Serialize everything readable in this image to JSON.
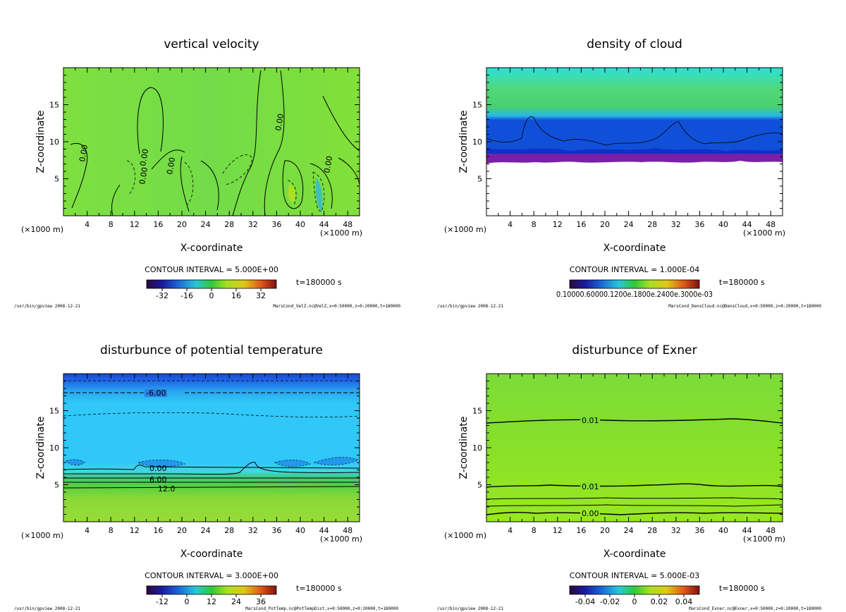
{
  "chart_data": [
    {
      "type": "contour",
      "title": "vertical velocity",
      "xlabel": "X-coordinate",
      "ylabel": "Z-coordinate",
      "xunit": "(×1000 m)",
      "xlim": [
        0,
        50
      ],
      "ylim": [
        0,
        20
      ],
      "xticks": [
        4,
        8,
        12,
        16,
        20,
        24,
        28,
        32,
        36,
        40,
        44,
        48
      ],
      "yticks": [
        5,
        10,
        15
      ],
      "contour_interval": "CONTOUR INTERVAL = 5.000E+00",
      "time_label": "t=180000 s",
      "colorbar_ticks": [
        "-32",
        "-16",
        "0",
        "16",
        "32"
      ],
      "contour_labels": [
        "0.00",
        "0.00",
        "0.00",
        "0.00",
        "0.00",
        "0.00"
      ],
      "footer_left": "/usr/bin/gpview  2008-12-21",
      "footer_right": "MarsCond_VelZ.nc@VelZ,x=0:50000,z=0:20000,t=180000"
    },
    {
      "type": "contour",
      "title": "density of cloud",
      "xlabel": "X-coordinate",
      "ylabel": "Z-coordinate",
      "xunit": "(×1000 m)",
      "xlim": [
        0,
        50
      ],
      "ylim": [
        0,
        20
      ],
      "xticks": [
        4,
        8,
        12,
        16,
        20,
        24,
        28,
        32,
        36,
        40,
        44,
        48
      ],
      "yticks": [
        5,
        10,
        15
      ],
      "contour_interval": "CONTOUR INTERVAL = 1.000E-04",
      "time_label": "t=180000 s",
      "colorbar_ticks": [
        "0.1000E-03"
      ],
      "colorbar_tick_text": "0.10000.60000.1200e.1800e.2400e.3000e-03",
      "footer_left": "/usr/bin/gpview  2008-12-21",
      "footer_right": "MarsCond_DensCloud.nc@DensCloud,x=0:50000,z=0:20000,t=180000"
    },
    {
      "type": "contour",
      "title": "disturbunce of potential temperature",
      "xlabel": "X-coordinate",
      "ylabel": "Z-coordinate",
      "xunit": "(×1000 m)",
      "xlim": [
        0,
        50
      ],
      "ylim": [
        0,
        20
      ],
      "xticks": [
        4,
        8,
        12,
        16,
        20,
        24,
        28,
        32,
        36,
        40,
        44,
        48
      ],
      "yticks": [
        5,
        10,
        15
      ],
      "contour_interval": "CONTOUR INTERVAL = 3.000E+00",
      "time_label": "t=180000 s",
      "colorbar_ticks": [
        "-12",
        "0",
        "12",
        "24",
        "36"
      ],
      "contour_labels": [
        "-6.00",
        "0.00",
        "6.00",
        "12.0"
      ],
      "footer_left": "/usr/bin/gpview  2008-12-21",
      "footer_right": "MarsCond_PotTemp.nc@PotTempDist,x=0:50000,z=0:20000,t=180000"
    },
    {
      "type": "contour",
      "title": "disturbunce of Exner",
      "xlabel": "X-coordinate",
      "ylabel": "Z-coordinate",
      "xunit": "(×1000 m)",
      "xlim": [
        0,
        50
      ],
      "ylim": [
        0,
        20
      ],
      "xticks": [
        4,
        8,
        12,
        16,
        20,
        24,
        28,
        32,
        36,
        40,
        44,
        48
      ],
      "yticks": [
        5,
        10,
        15
      ],
      "contour_interval": "CONTOUR INTERVAL = 5.000E-03",
      "time_label": "t=180000 s",
      "colorbar_ticks": [
        "-0.04",
        "-0.02",
        "0",
        "0.02",
        "0.04"
      ],
      "contour_labels": [
        "0.01",
        "0.01",
        "0.00"
      ],
      "footer_left": "/usr/bin/gpview  2008-12-21",
      "footer_right": "MarsCond_Exner.nc@Exner,x=0:50000,z=0:20000,t=180000"
    }
  ]
}
